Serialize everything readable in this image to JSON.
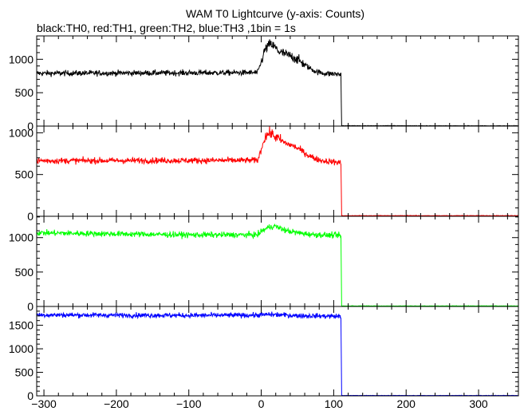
{
  "chart_data": {
    "type": "line",
    "title": "WAM T0 Lightcurve (y-axis: Counts)",
    "subtitle": "black:TH0, red:TH1, green:TH2, blue:TH3 ,1bin = 1s",
    "xlim": [
      -310,
      355
    ],
    "x_ticks": [
      -300,
      -200,
      -100,
      0,
      100,
      200,
      300
    ],
    "x_tick_labels": [
      "−300",
      "−200",
      "−100",
      "0",
      "100",
      "200",
      "300"
    ],
    "panels": [
      {
        "name": "TH0",
        "color": "#000000",
        "ylim": [
          0,
          1350
        ],
        "y_ticks": [
          0,
          500,
          1000
        ],
        "y_tick_labels": [
          "0",
          "500",
          "1000"
        ],
        "profile": [
          [
            -310,
            790
          ],
          [
            -5,
            800
          ],
          [
            0,
            960
          ],
          [
            5,
            1140
          ],
          [
            12,
            1230
          ],
          [
            18,
            1190
          ],
          [
            25,
            1110
          ],
          [
            35,
            1070
          ],
          [
            45,
            1030
          ],
          [
            55,
            960
          ],
          [
            65,
            880
          ],
          [
            75,
            820
          ],
          [
            85,
            790
          ],
          [
            110,
            775
          ],
          [
            111,
            3
          ],
          [
            355,
            2
          ]
        ],
        "noise": 30
      },
      {
        "name": "TH1",
        "color": "#ff0000",
        "ylim": [
          0,
          1080
        ],
        "y_ticks": [
          0,
          500,
          1000
        ],
        "y_tick_labels": [
          "0",
          "500",
          "1000"
        ],
        "profile": [
          [
            -310,
            665
          ],
          [
            -5,
            670
          ],
          [
            0,
            800
          ],
          [
            5,
            950
          ],
          [
            12,
            1000
          ],
          [
            18,
            960
          ],
          [
            25,
            920
          ],
          [
            35,
            870
          ],
          [
            45,
            840
          ],
          [
            55,
            790
          ],
          [
            65,
            730
          ],
          [
            75,
            690
          ],
          [
            85,
            665
          ],
          [
            110,
            640
          ],
          [
            111,
            5
          ],
          [
            355,
            5
          ]
        ],
        "noise": 26
      },
      {
        "name": "TH2",
        "color": "#00ff00",
        "ylim": [
          0,
          1310
        ],
        "y_ticks": [
          0,
          500,
          1000
        ],
        "y_tick_labels": [
          "0",
          "500",
          "1000"
        ],
        "profile": [
          [
            -310,
            1070
          ],
          [
            -100,
            1040
          ],
          [
            -5,
            1040
          ],
          [
            0,
            1090
          ],
          [
            10,
            1150
          ],
          [
            18,
            1170
          ],
          [
            25,
            1140
          ],
          [
            35,
            1100
          ],
          [
            50,
            1070
          ],
          [
            70,
            1045
          ],
          [
            110,
            1030
          ],
          [
            111,
            5
          ],
          [
            355,
            5
          ]
        ],
        "noise": 30
      },
      {
        "name": "TH3",
        "color": "#0000ff",
        "ylim": [
          0,
          1900
        ],
        "y_ticks": [
          0,
          500,
          1000,
          1500
        ],
        "y_tick_labels": [
          "0",
          "500",
          "1000",
          "1500"
        ],
        "profile": [
          [
            -310,
            1720
          ],
          [
            -100,
            1710
          ],
          [
            -5,
            1715
          ],
          [
            10,
            1730
          ],
          [
            20,
            1725
          ],
          [
            50,
            1705
          ],
          [
            110,
            1690
          ],
          [
            111,
            5
          ],
          [
            355,
            5
          ]
        ],
        "noise": 38
      }
    ]
  }
}
